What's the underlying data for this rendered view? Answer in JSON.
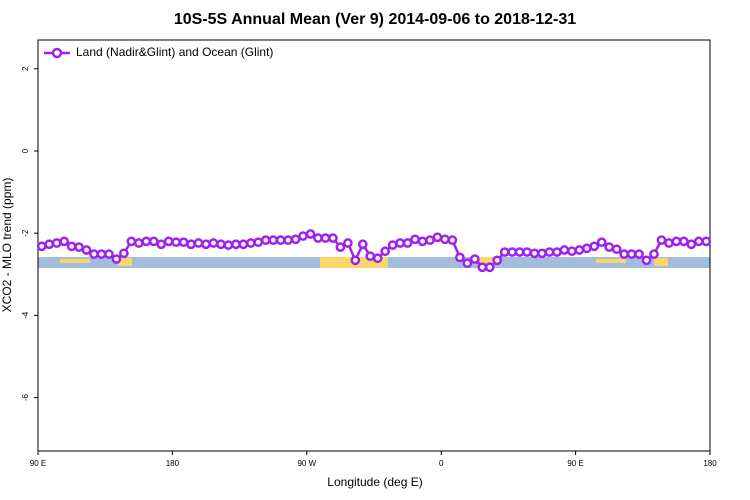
{
  "chart_data": {
    "type": "line",
    "title": "10S-5S Annual Mean (Ver 9)   2014-09-06 to 2018-12-31",
    "x_label": "Longitude (deg E)",
    "y_label": "XCO2 - MLO trend (ppm)",
    "xlim": [
      90,
      540
    ],
    "ylim": [
      -7.3,
      2.7
    ],
    "xticks": [
      {
        "value": 90,
        "label": "90 E"
      },
      180,
      {
        "value": 270,
        "label": "90 W"
      },
      {
        "value": 360,
        "label": "0"
      },
      {
        "value": 450,
        "label": "90 E"
      },
      {
        "value": 540,
        "label": "180"
      }
    ],
    "yticks": [
      -6,
      -4,
      -2,
      0,
      2
    ],
    "grid": false,
    "legend": "top-left",
    "x": [
      92.5,
      97.5,
      102.5,
      107.5,
      112.5,
      117.5,
      122.5,
      127.5,
      132.5,
      137.5,
      142.5,
      147.5,
      152.5,
      157.5,
      162.5,
      167.5,
      172.5,
      177.5,
      182.5,
      187.5,
      192.5,
      197.5,
      202.5,
      207.5,
      212.5,
      217.5,
      222.5,
      227.5,
      232.5,
      237.5,
      242.5,
      247.5,
      252.5,
      257.5,
      262.5,
      267.5,
      272.5,
      277.5,
      282.5,
      287.5,
      292.5,
      297.5,
      302.5,
      307.5,
      312.5,
      317.5,
      322.5,
      327.5,
      332.5,
      337.5,
      342.5,
      347.5,
      352.5,
      357.5,
      362.5,
      367.5,
      372.5,
      377.5,
      382.5,
      387.5,
      392.5,
      397.5,
      402.5,
      407.5,
      412.5,
      417.5,
      422.5,
      427.5,
      432.5,
      437.5,
      442.5,
      447.5,
      452.5,
      457.5,
      462.5,
      467.5,
      472.5,
      477.5,
      482.5,
      487.5,
      492.5,
      497.5,
      502.5,
      507.5,
      512.5,
      517.5,
      522.5,
      527.5,
      532.5,
      537.5
    ],
    "series": [
      {
        "name": "Land (Nadir&Glint) and Ocean (Glint)",
        "color": "#a020f0",
        "values": [
          -2.32,
          -2.27,
          -2.24,
          -2.2,
          -2.32,
          -2.34,
          -2.41,
          -2.51,
          -2.51,
          -2.51,
          -2.63,
          -2.49,
          -2.2,
          -2.24,
          -2.2,
          -2.2,
          -2.27,
          -2.2,
          -2.22,
          -2.22,
          -2.27,
          -2.24,
          -2.27,
          -2.24,
          -2.27,
          -2.29,
          -2.27,
          -2.27,
          -2.24,
          -2.22,
          -2.17,
          -2.17,
          -2.17,
          -2.17,
          -2.15,
          -2.07,
          -2.02,
          -2.12,
          -2.12,
          -2.12,
          -2.34,
          -2.24,
          -2.66,
          -2.27,
          -2.56,
          -2.61,
          -2.44,
          -2.29,
          -2.24,
          -2.24,
          -2.15,
          -2.2,
          -2.17,
          -2.1,
          -2.15,
          -2.17,
          -2.59,
          -2.73,
          -2.63,
          -2.83,
          -2.83,
          -2.66,
          -2.46,
          -2.46,
          -2.46,
          -2.46,
          -2.49,
          -2.49,
          -2.46,
          -2.46,
          -2.41,
          -2.44,
          -2.41,
          -2.37,
          -2.32,
          -2.22,
          -2.34,
          -2.39,
          -2.51,
          -2.51,
          -2.51,
          -2.66,
          -2.51,
          -2.17,
          -2.24,
          -2.2,
          -2.2,
          -2.27,
          -2.2,
          -2.2
        ]
      }
    ]
  }
}
